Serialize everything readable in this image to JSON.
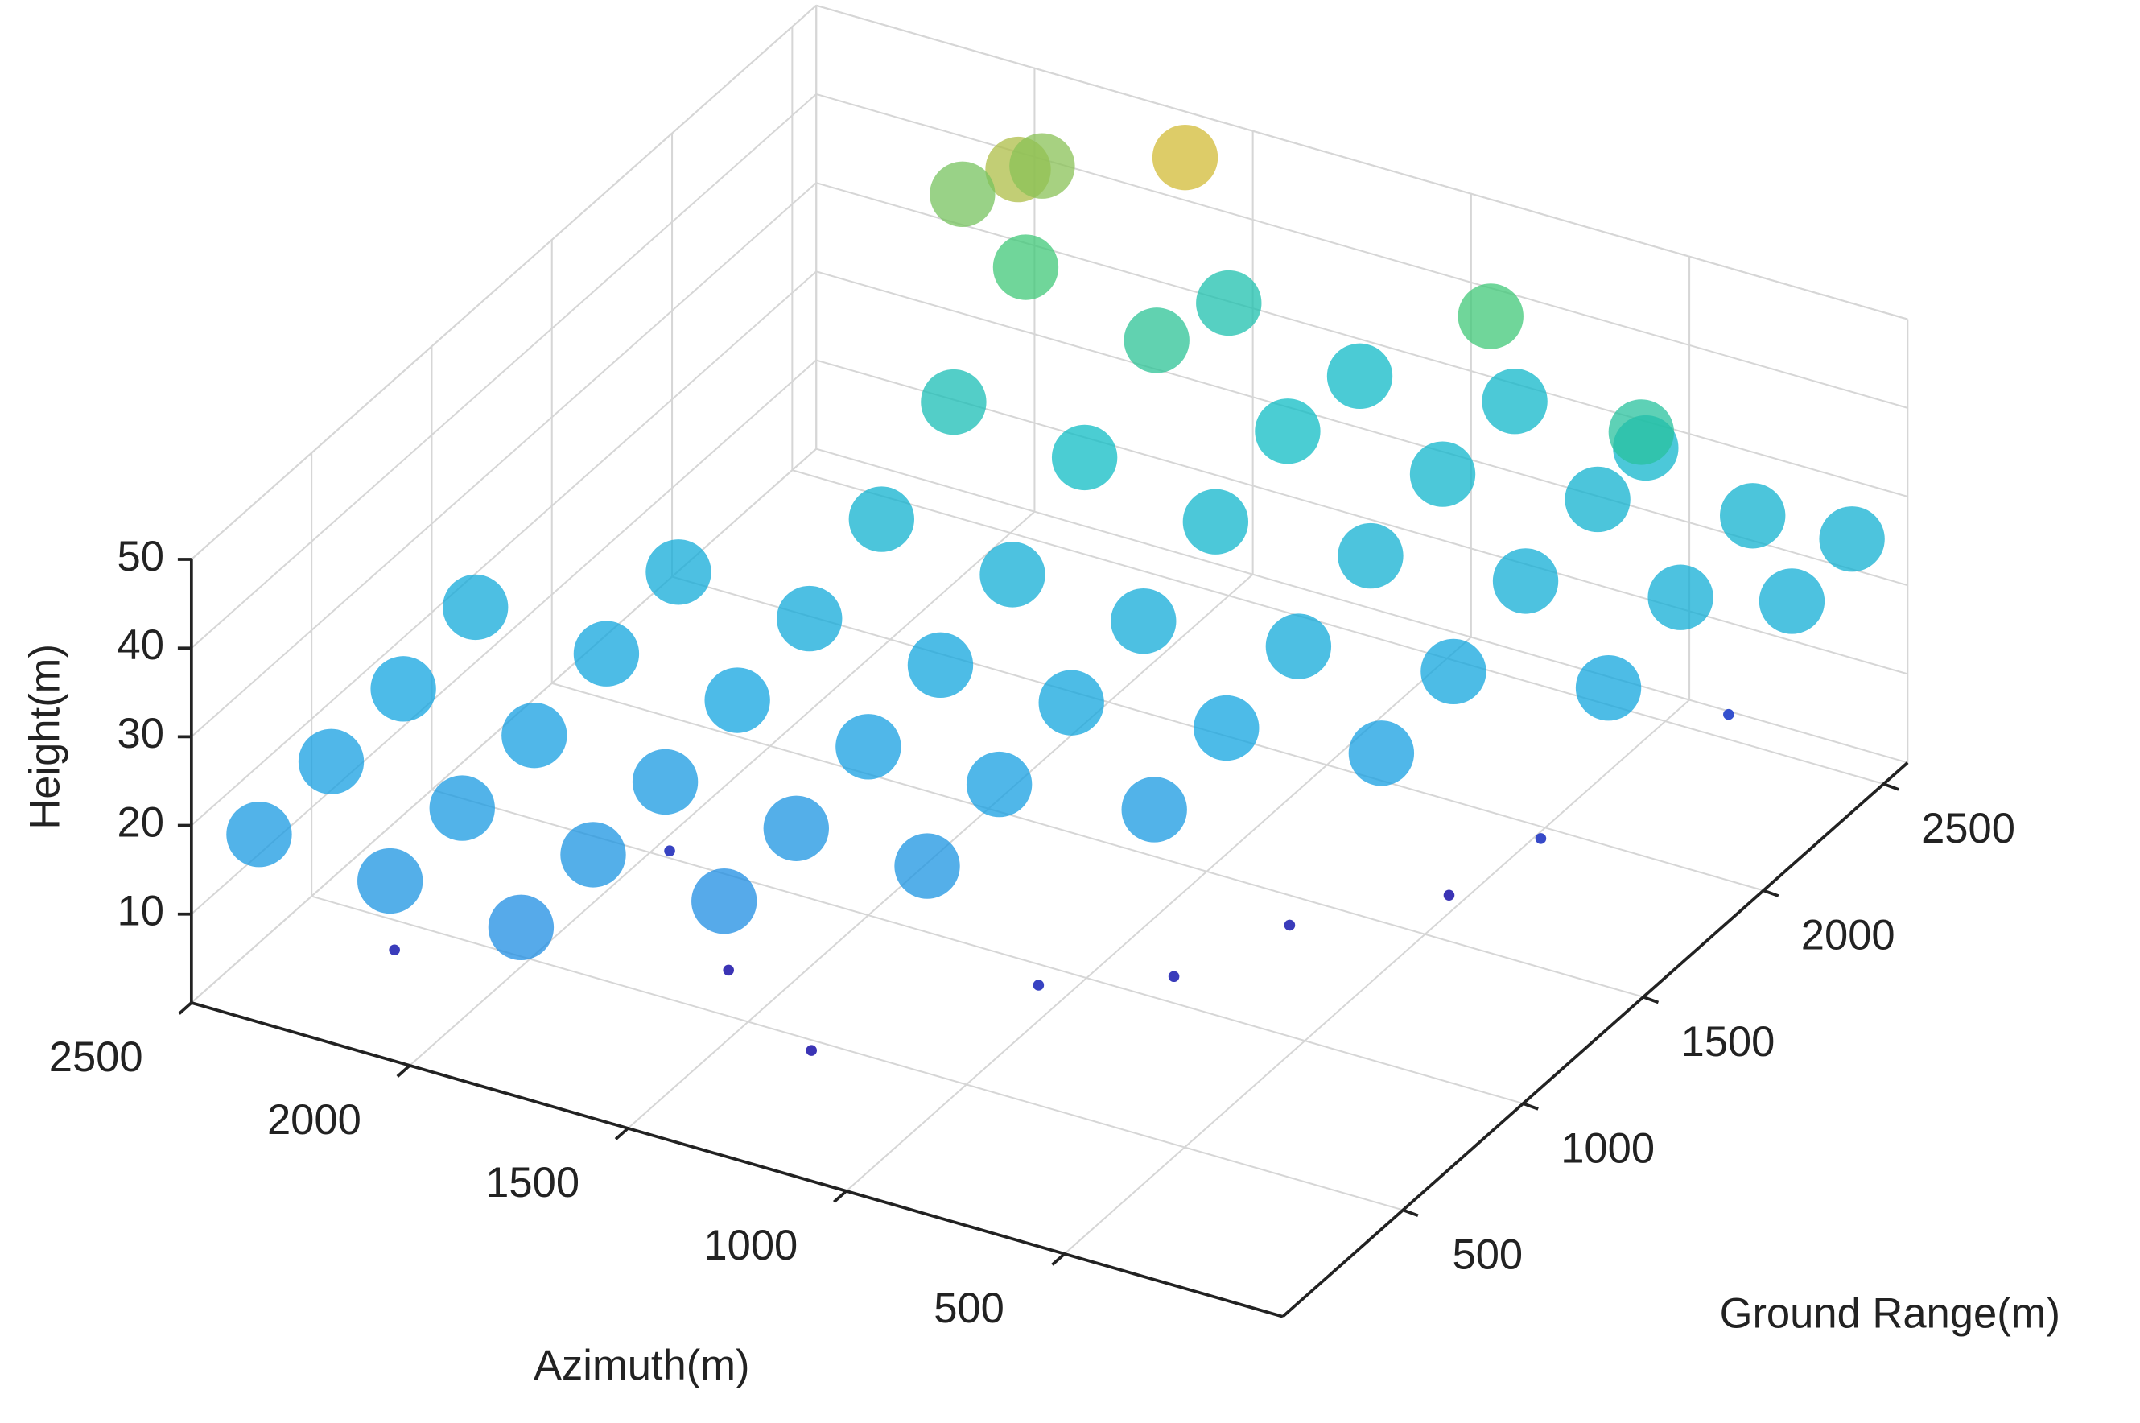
{
  "chart_data": {
    "type": "scatter3d",
    "xlabel": "Azimuth(m)",
    "ylabel": "Ground Range(m)",
    "zlabel": "Height(m)",
    "xlim": [
      0,
      2500
    ],
    "ylim": [
      0,
      2600
    ],
    "zlim": [
      0,
      50
    ],
    "xticks": [
      500,
      1000,
      1500,
      2000,
      2500
    ],
    "yticks": [
      500,
      1000,
      1500,
      2000,
      2500
    ],
    "zticks": [
      10,
      20,
      30,
      40,
      50
    ],
    "grid": true,
    "colormap": [
      "#3e26a8",
      "#2f6ee8",
      "#12a4e0",
      "#0fbcc4",
      "#40c878",
      "#f6b826"
    ],
    "clim": [
      0,
      50
    ],
    "x": [
      2400,
      2400,
      2400,
      2400,
      2100,
      2100,
      2100,
      2100,
      2100,
      1800,
      1800,
      1800,
      1800,
      1800,
      1800,
      1800,
      1800,
      1900,
      1900,
      2000,
      1500,
      1500,
      1500,
      1500,
      1500,
      1500,
      1500,
      1500,
      1200,
      1200,
      1200,
      1200,
      1200,
      1200,
      1200,
      900,
      900,
      900,
      900,
      900,
      900,
      600,
      600,
      600,
      600,
      600,
      300,
      300,
      300,
      100,
      100,
      2200,
      1600,
      1000,
      700,
      400,
      1300,
      300,
      800,
      1900,
      500,
      1600,
      900,
      500
    ],
    "y": [
      100,
      400,
      700,
      1000,
      100,
      400,
      700,
      1000,
      1300,
      100,
      400,
      700,
      1000,
      1300,
      1600,
      1900,
      2200,
      2350,
      2450,
      2300,
      400,
      700,
      1000,
      1300,
      1600,
      1900,
      2200,
      2500,
      700,
      1000,
      1300,
      1600,
      1900,
      2200,
      2500,
      1100,
      1400,
      1700,
      2000,
      2300,
      2600,
      1500,
      1800,
      2100,
      2400,
      2600,
      1900,
      2200,
      2500,
      2300,
      2550,
      300,
      600,
      800,
      1300,
      1800,
      400,
      2400,
      1000,
      900,
      1600,
      2500,
      2500,
      2400
    ],
    "z": [
      18,
      19,
      20,
      22,
      17,
      18,
      19,
      21,
      23,
      16,
      17,
      18,
      20,
      22,
      26,
      32,
      40,
      46,
      44,
      43,
      16,
      17,
      19,
      21,
      24,
      30,
      36,
      33,
      17,
      19,
      21,
      23,
      27,
      30,
      29,
      18,
      20,
      22,
      25,
      27,
      28,
      19,
      21,
      24,
      26,
      27,
      21,
      24,
      26,
      24,
      25,
      3,
      2,
      4,
      3,
      5,
      2,
      6,
      3,
      4,
      2,
      48,
      40,
      35
    ]
  }
}
